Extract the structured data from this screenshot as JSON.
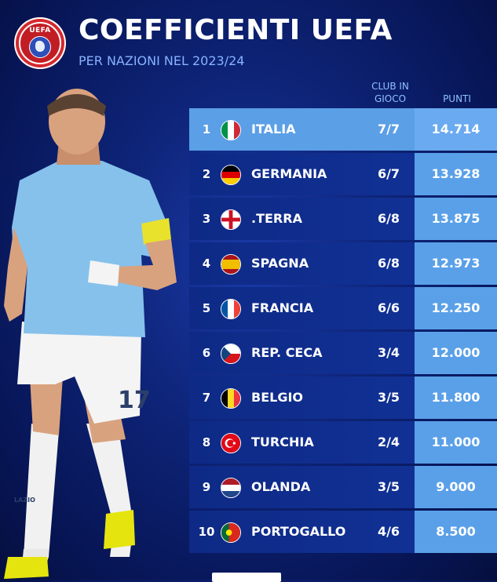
{
  "header": {
    "title": "COEFFICIENTI UEFA",
    "subtitle": "PER NAZIONI NEL 2023/24",
    "logo_text": "UEFA"
  },
  "columns": {
    "club": "CLUB IN GIOCO",
    "points": "PUNTI"
  },
  "player": {
    "shirt_number": "17",
    "sponsor": "LAZIO"
  },
  "rows": [
    {
      "rank": "1",
      "country": "ITALIA",
      "clubs": "7/7",
      "points": "14.714",
      "flag": "italy-flag"
    },
    {
      "rank": "2",
      "country": "GERMANIA",
      "clubs": "6/7",
      "points": "13.928",
      "flag": "germany-flag"
    },
    {
      "rank": "3",
      "country": ".TERRA",
      "clubs": "6/8",
      "points": "13.875",
      "flag": "england-flag"
    },
    {
      "rank": "4",
      "country": "SPAGNA",
      "clubs": "6/8",
      "points": "12.973",
      "flag": "spain-flag"
    },
    {
      "rank": "5",
      "country": "FRANCIA",
      "clubs": "6/6",
      "points": "12.250",
      "flag": "france-flag"
    },
    {
      "rank": "6",
      "country": "REP. CECA",
      "clubs": "3/4",
      "points": "12.000",
      "flag": "czech-flag"
    },
    {
      "rank": "7",
      "country": "BELGIO",
      "clubs": "3/5",
      "points": "11.800",
      "flag": "belgium-flag"
    },
    {
      "rank": "8",
      "country": "TURCHIA",
      "clubs": "2/4",
      "points": "11.000",
      "flag": "turkey-flag"
    },
    {
      "rank": "9",
      "country": "OLANDA",
      "clubs": "3/5",
      "points": "9.000",
      "flag": "netherlands-flag"
    },
    {
      "rank": "10",
      "country": "PORTOGALLO",
      "clubs": "4/6",
      "points": "8.500",
      "flag": "portugal-flag"
    }
  ]
}
